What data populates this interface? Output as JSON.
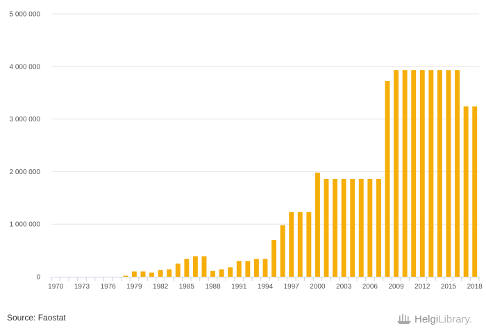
{
  "chart_data": {
    "type": "bar",
    "x": [
      1970,
      1971,
      1972,
      1973,
      1974,
      1975,
      1976,
      1977,
      1978,
      1979,
      1980,
      1981,
      1982,
      1983,
      1984,
      1985,
      1986,
      1987,
      1988,
      1989,
      1990,
      1991,
      1992,
      1993,
      1994,
      1995,
      1996,
      1997,
      1998,
      1999,
      2000,
      2001,
      2002,
      2003,
      2004,
      2005,
      2006,
      2007,
      2008,
      2009,
      2010,
      2011,
      2012,
      2013,
      2014,
      2015,
      2016,
      2017,
      2018
    ],
    "values": [
      0,
      0,
      0,
      0,
      0,
      0,
      0,
      0,
      20000,
      100000,
      100000,
      80000,
      130000,
      140000,
      250000,
      340000,
      390000,
      390000,
      110000,
      140000,
      180000,
      300000,
      300000,
      340000,
      340000,
      700000,
      980000,
      1230000,
      1230000,
      1230000,
      1980000,
      1860000,
      1860000,
      1860000,
      1860000,
      1860000,
      1860000,
      1860000,
      3720000,
      3930000,
      3930000,
      3930000,
      3930000,
      3930000,
      3930000,
      3930000,
      3930000,
      3240000,
      3240000
    ],
    "x_tick_labels": [
      "1970",
      "1973",
      "1976",
      "1979",
      "1982",
      "1985",
      "1988",
      "1991",
      "1994",
      "1997",
      "2000",
      "2003",
      "2006",
      "2009",
      "2012",
      "2015",
      "2018"
    ],
    "y_tick_labels": [
      "0",
      "1 000 000",
      "2 000 000",
      "3 000 000",
      "4 000 000",
      "5 000 000"
    ],
    "ylim": [
      0,
      5000000
    ],
    "grid": true,
    "bar_color": "#f6ae0a",
    "title": "",
    "xlabel": "",
    "ylabel": ""
  },
  "footer": {
    "source": "Source: Faostat",
    "brand_part1": "Helgi",
    "brand_part2": "Library."
  },
  "icons": {
    "brand_logo": "helgi-ship-logo-icon"
  }
}
